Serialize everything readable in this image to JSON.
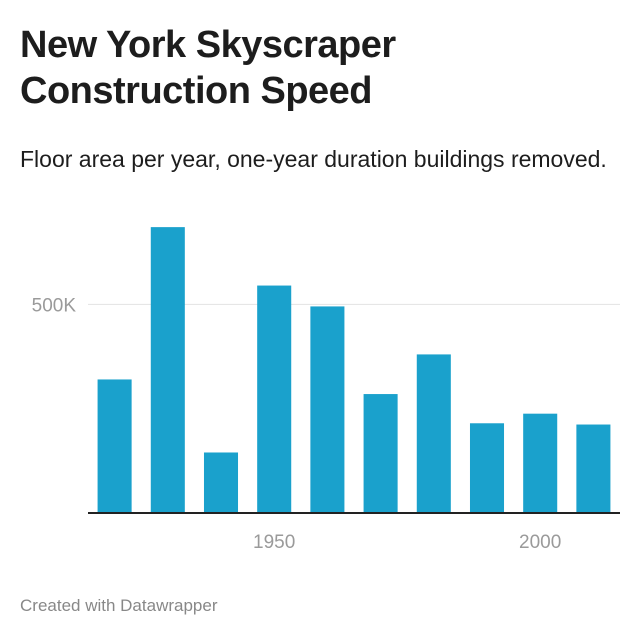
{
  "chart_data": {
    "type": "bar",
    "title": "New York Skyscraper Construction Speed",
    "subtitle": "Floor area per year, one-year duration buildings removed.",
    "x": [
      1920,
      1930,
      1940,
      1950,
      1960,
      1970,
      1980,
      1990,
      2000,
      2010
    ],
    "values": [
      320000,
      685000,
      145000,
      545000,
      495000,
      285000,
      380000,
      215000,
      238000,
      212000
    ],
    "ylim": [
      0,
      750000
    ],
    "xlim": [
      1915,
      2015
    ],
    "y_ticks": [
      {
        "value": 500000,
        "label": "500K"
      }
    ],
    "x_ticks": [
      {
        "value": 1950,
        "label": "1950"
      },
      {
        "value": 2000,
        "label": "2000"
      }
    ],
    "grid": true,
    "bar_color": "#1aa1cc"
  },
  "footer": "Created with Datawrapper"
}
